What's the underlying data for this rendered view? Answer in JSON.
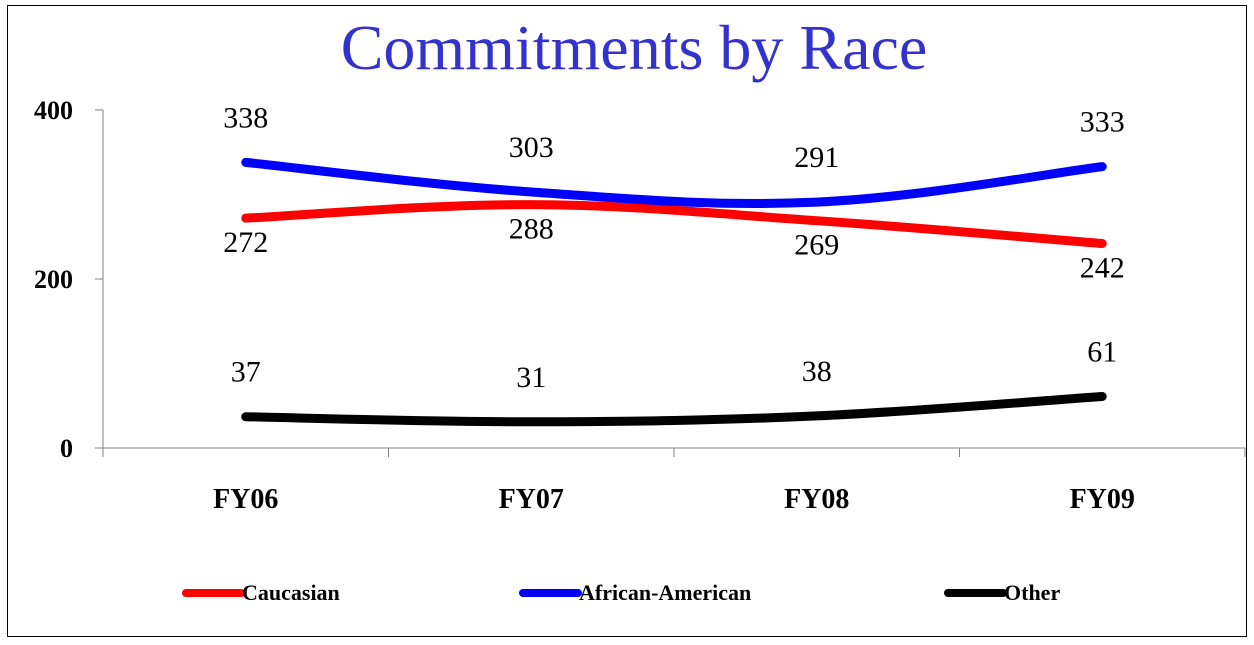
{
  "chart_data": {
    "type": "line",
    "title": "Commitments by Race",
    "xlabel": "",
    "ylabel": "",
    "categories": [
      "FY06",
      "FY07",
      "FY08",
      "FY09"
    ],
    "ylim": [
      0,
      400
    ],
    "yticks": [
      0,
      200,
      400
    ],
    "grid": false,
    "legend": "bottom",
    "series": [
      {
        "name": "Caucasian",
        "values": [
          272,
          288,
          269,
          242
        ],
        "color": "#ff0000"
      },
      {
        "name": "African-American",
        "values": [
          338,
          303,
          291,
          333
        ],
        "color": "#0000ff"
      },
      {
        "name": "Other",
        "values": [
          37,
          31,
          38,
          61
        ],
        "color": "#000000"
      }
    ]
  }
}
